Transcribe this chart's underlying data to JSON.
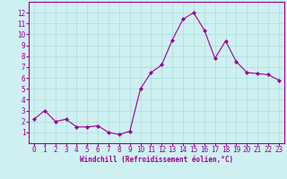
{
  "x": [
    0,
    1,
    2,
    3,
    4,
    5,
    6,
    7,
    8,
    9,
    10,
    11,
    12,
    13,
    14,
    15,
    16,
    17,
    18,
    19,
    20,
    21,
    22,
    23
  ],
  "y": [
    2.2,
    3.0,
    2.0,
    2.2,
    1.5,
    1.5,
    1.6,
    1.0,
    0.8,
    1.1,
    5.0,
    6.5,
    7.2,
    9.5,
    11.4,
    12.0,
    10.4,
    7.8,
    9.4,
    7.5,
    6.5,
    6.4,
    6.3,
    5.8
  ],
  "line_color": "#990099",
  "marker": "D",
  "marker_size": 2,
  "bg_color": "#cff0f0",
  "grid_color": "#aadddd",
  "axis_color": "#990099",
  "tick_color": "#990099",
  "xlabel": "Windchill (Refroidissement éolien,°C)",
  "xlabel_fontsize": 5.5,
  "xlabel_color": "#990099",
  "ylim": [
    0,
    13
  ],
  "xlim": [
    -0.5,
    23.5
  ],
  "xticks": [
    0,
    1,
    2,
    3,
    4,
    5,
    6,
    7,
    8,
    9,
    10,
    11,
    12,
    13,
    14,
    15,
    16,
    17,
    18,
    19,
    20,
    21,
    22,
    23
  ],
  "yticks": [
    1,
    2,
    3,
    4,
    5,
    6,
    7,
    8,
    9,
    10,
    11,
    12
  ],
  "tick_fontsize": 5.5,
  "linewidth": 0.8
}
